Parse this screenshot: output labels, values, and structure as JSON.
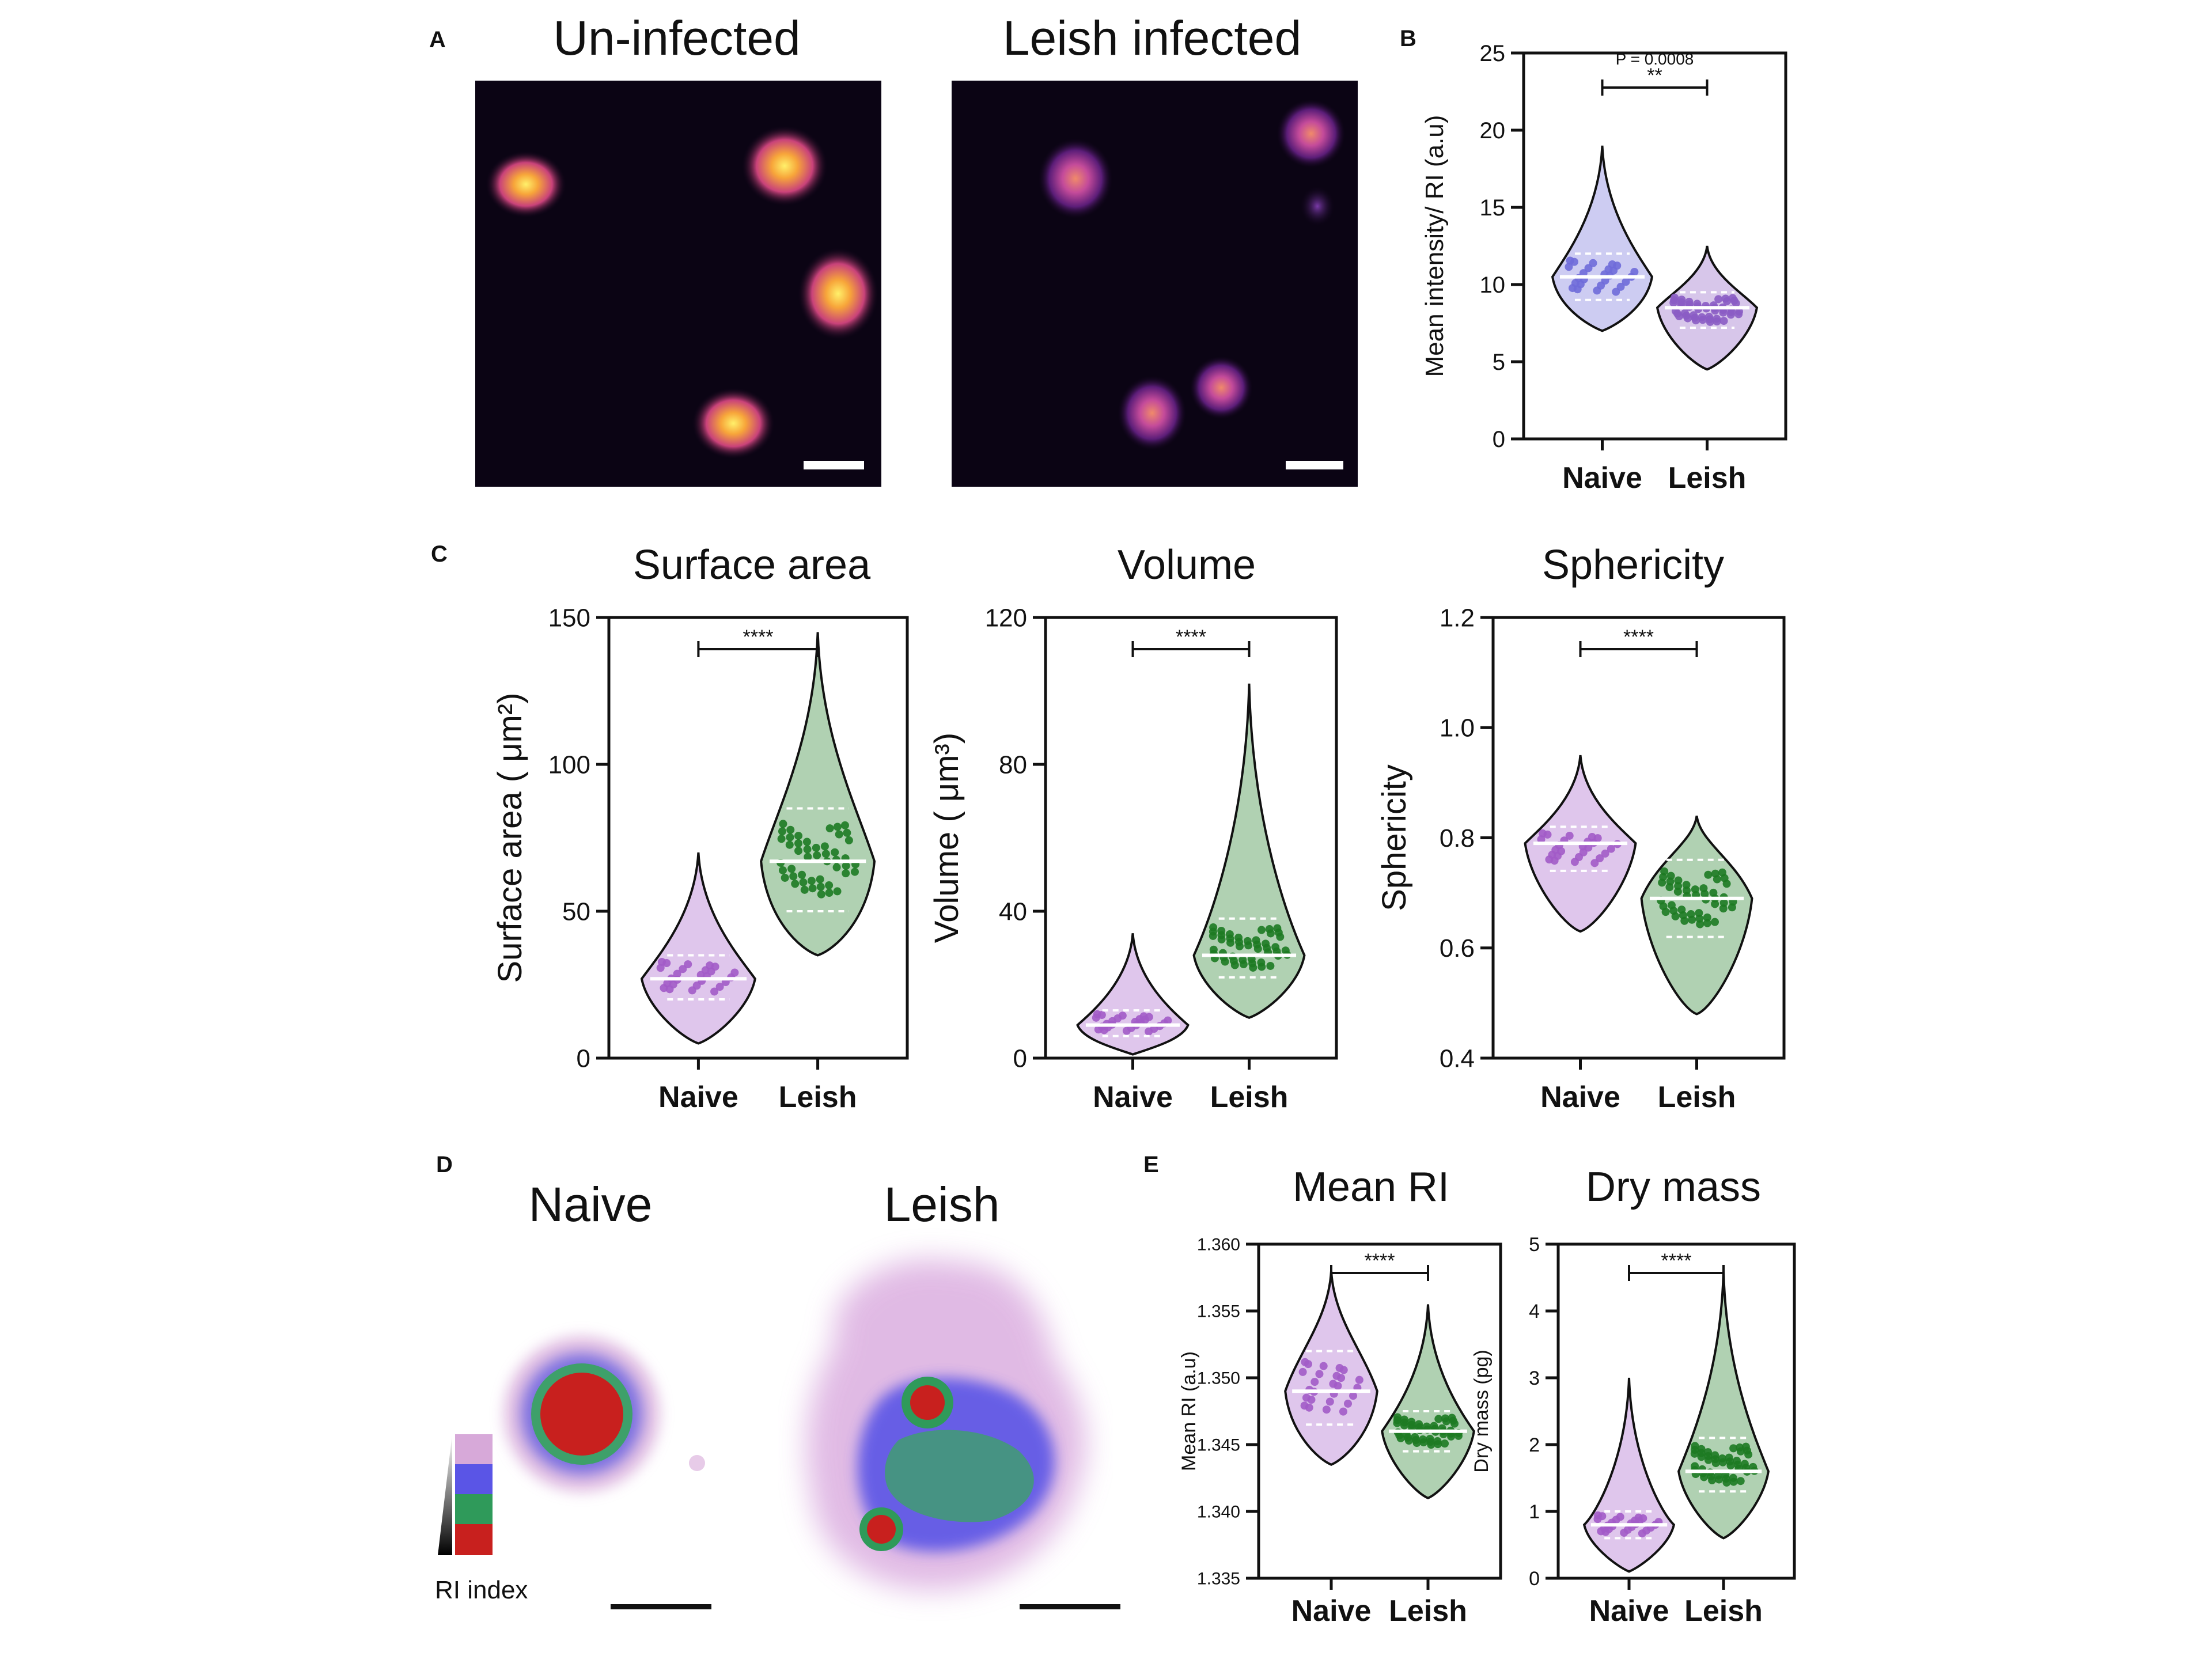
{
  "panels": {
    "A": {
      "letter": "A",
      "left_title": "Un-infected",
      "right_title": "Leish infected"
    },
    "D": {
      "letter": "D",
      "left_title": "Naive",
      "right_title": "Leish",
      "legend_label": "RI index",
      "legend_colors": [
        "#d7a9d9",
        "#5a55e6",
        "#2f9a5a",
        "#c8201e"
      ]
    }
  },
  "chart_data": [
    {
      "id": "B",
      "letter": "B",
      "type": "violin",
      "title": "",
      "ylabel": "Mean intensity/ RI (a.u)",
      "ylim": [
        0,
        25
      ],
      "yticks": [
        "0",
        "5",
        "10",
        "15",
        "20",
        "25"
      ],
      "categories": [
        "Naive",
        "Leish"
      ],
      "series": [
        {
          "min": 7,
          "q1": 9.0,
          "median": 10.5,
          "q3": 12,
          "max": 19,
          "color": "#6f6cd9"
        },
        {
          "min": 4.5,
          "q1": 7.2,
          "median": 8.5,
          "q3": 9.5,
          "max": 12.5,
          "color": "#8b5cc4"
        }
      ],
      "significance": {
        "text": "P = 0.0008",
        "mark": "**"
      }
    },
    {
      "id": "C1",
      "letter": "C",
      "type": "violin",
      "title": "Surface area",
      "ylabel": "Surface area ( μm²)",
      "ylim": [
        0,
        150
      ],
      "yticks": [
        "0",
        "50",
        "100",
        "150"
      ],
      "categories": [
        "Naive",
        "Leish"
      ],
      "series": [
        {
          "min": 5,
          "q1": 20,
          "median": 27,
          "q3": 35,
          "max": 70,
          "color": "#a25bc8"
        },
        {
          "min": 35,
          "q1": 50,
          "median": 67,
          "q3": 85,
          "max": 145,
          "color": "#1d7a22"
        }
      ],
      "significance": {
        "text": "",
        "mark": "****"
      }
    },
    {
      "id": "C2",
      "type": "violin",
      "title": "Volume",
      "ylabel": "Volume ( μm³)",
      "ylim": [
        0,
        120
      ],
      "yticks": [
        "0",
        "40",
        "80",
        "120"
      ],
      "categories": [
        "Naive",
        "Leish"
      ],
      "series": [
        {
          "min": 1,
          "q1": 6,
          "median": 9,
          "q3": 13,
          "max": 34,
          "color": "#a25bc8"
        },
        {
          "min": 11,
          "q1": 22,
          "median": 28,
          "q3": 38,
          "max": 102,
          "color": "#1d7a22"
        }
      ],
      "significance": {
        "text": "",
        "mark": "****"
      }
    },
    {
      "id": "C3",
      "type": "violin",
      "title": "Sphericity",
      "ylabel": "Sphericity",
      "ylim": [
        0.4,
        1.2
      ],
      "yticks": [
        "0.4",
        "0.6",
        "0.8",
        "1.0",
        "1.2"
      ],
      "categories": [
        "Naive",
        "Leish"
      ],
      "series": [
        {
          "min": 0.63,
          "q1": 0.74,
          "median": 0.79,
          "q3": 0.82,
          "max": 0.95,
          "color": "#a25bc8"
        },
        {
          "min": 0.48,
          "q1": 0.62,
          "median": 0.69,
          "q3": 0.76,
          "max": 0.84,
          "color": "#1d7a22"
        }
      ],
      "significance": {
        "text": "",
        "mark": "****"
      }
    },
    {
      "id": "E1",
      "letter": "E",
      "type": "violin",
      "title": "Mean RI",
      "ylabel": "Mean RI (a.u)",
      "ylim": [
        1.335,
        1.36
      ],
      "yticks": [
        "1.335",
        "1.340",
        "1.345",
        "1.350",
        "1.355",
        "1.360"
      ],
      "categories": [
        "Naive",
        "Leish"
      ],
      "series": [
        {
          "min": 1.3435,
          "q1": 1.3465,
          "median": 1.349,
          "q3": 1.352,
          "max": 1.358,
          "color": "#a25bc8"
        },
        {
          "min": 1.341,
          "q1": 1.3445,
          "median": 1.346,
          "q3": 1.3475,
          "max": 1.3555,
          "color": "#1d7a22"
        }
      ],
      "significance": {
        "text": "",
        "mark": "****"
      }
    },
    {
      "id": "E2",
      "type": "violin",
      "title": "Dry mass",
      "ylabel": "Dry mass (pg)",
      "ylim": [
        0,
        5
      ],
      "yticks": [
        "0",
        "1",
        "2",
        "3",
        "4",
        "5"
      ],
      "categories": [
        "Naive",
        "Leish"
      ],
      "series": [
        {
          "min": 0.1,
          "q1": 0.6,
          "median": 0.8,
          "q3": 1.0,
          "max": 3.0,
          "color": "#a25bc8"
        },
        {
          "min": 0.6,
          "q1": 1.3,
          "median": 1.6,
          "q3": 2.1,
          "max": 4.6,
          "color": "#1d7a22"
        }
      ],
      "significance": {
        "text": "",
        "mark": "****"
      }
    }
  ]
}
